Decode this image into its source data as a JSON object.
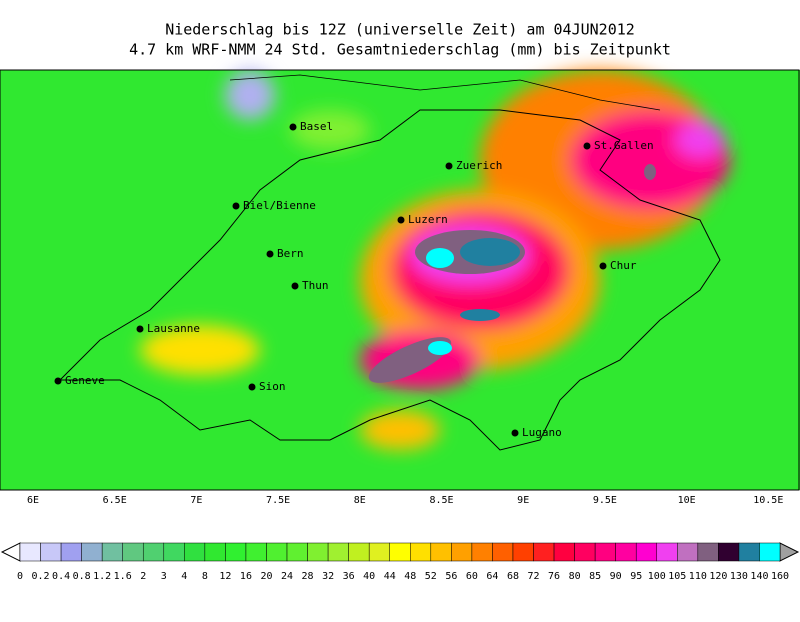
{
  "header": {
    "title": "Niederschlag bis 12Z (universelle Zeit) am 04JUN2012",
    "subtitle": "4.7 km WRF-NMM 24 Std. Gesamtniederschlag (mm) bis Zeitpunkt"
  },
  "map": {
    "cities": [
      "Basel",
      "Zuerich",
      "St.Gallen",
      "Biel/Bienne",
      "Luzern",
      "Bern",
      "Chur",
      "Thun",
      "Lausanne",
      "Geneve",
      "Sion",
      "Lugano"
    ],
    "lon_labels": [
      "6E",
      "6.5E",
      "7E",
      "7.5E",
      "8E",
      "8.5E",
      "9E",
      "9.5E",
      "10E",
      "10.5E"
    ]
  },
  "legend": {
    "labels": [
      "0",
      "0.2",
      "0.4",
      "0.8",
      "1.2",
      "1.6",
      "2",
      "3",
      "4",
      "8",
      "12",
      "16",
      "20",
      "24",
      "28",
      "32",
      "36",
      "40",
      "44",
      "48",
      "52",
      "56",
      "60",
      "64",
      "68",
      "72",
      "76",
      "80",
      "85",
      "90",
      "95",
      "100",
      "105",
      "110",
      "120",
      "130",
      "140",
      "160"
    ],
    "colors": [
      "#e8e8ff",
      "#c8c8f8",
      "#a0a0f0",
      "#90b0d0",
      "#70c0a0",
      "#60c880",
      "#50d070",
      "#40d860",
      "#30e040",
      "#30e830",
      "#30f030",
      "#40f030",
      "#50f030",
      "#60f030",
      "#80f030",
      "#a0f030",
      "#c0f020",
      "#e0f020",
      "#ffff00",
      "#ffe000",
      "#ffc000",
      "#ffa000",
      "#ff8000",
      "#ff6000",
      "#ff4000",
      "#ff2020",
      "#ff0040",
      "#ff0060",
      "#ff0080",
      "#ff00a0",
      "#ff00d0",
      "#f040f0",
      "#c070c0",
      "#806080",
      "#300030",
      "#2080a0",
      "#00ffff"
    ],
    "under_color": "#ffffff",
    "over_color": "#a0a0a0"
  }
}
